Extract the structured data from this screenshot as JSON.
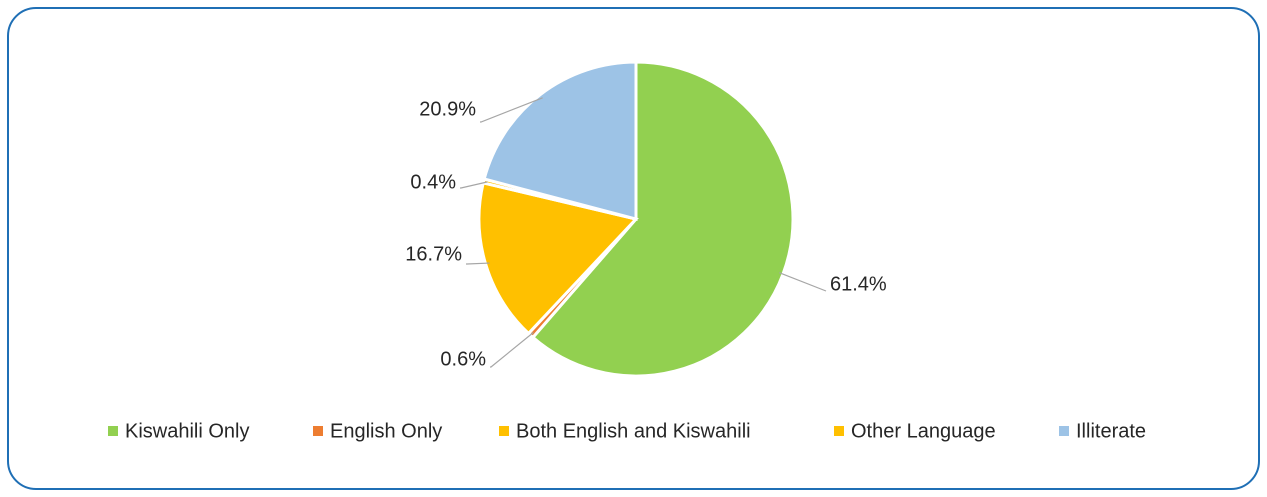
{
  "chart_data": {
    "type": "pie",
    "categories": [
      "Kiswahili Only",
      "English Only",
      "Both English and Kiswahili",
      "Other Language",
      "Illiterate"
    ],
    "values": [
      61.4,
      0.6,
      16.7,
      0.4,
      20.9
    ],
    "value_labels": [
      "61.4%",
      "0.6%",
      "16.7%",
      "0.4%",
      "20.9%"
    ],
    "colors": [
      "#92d050",
      "#ed7d31",
      "#ffc000",
      "#ffc000",
      "#9dc3e6"
    ],
    "legend": "bottom"
  }
}
